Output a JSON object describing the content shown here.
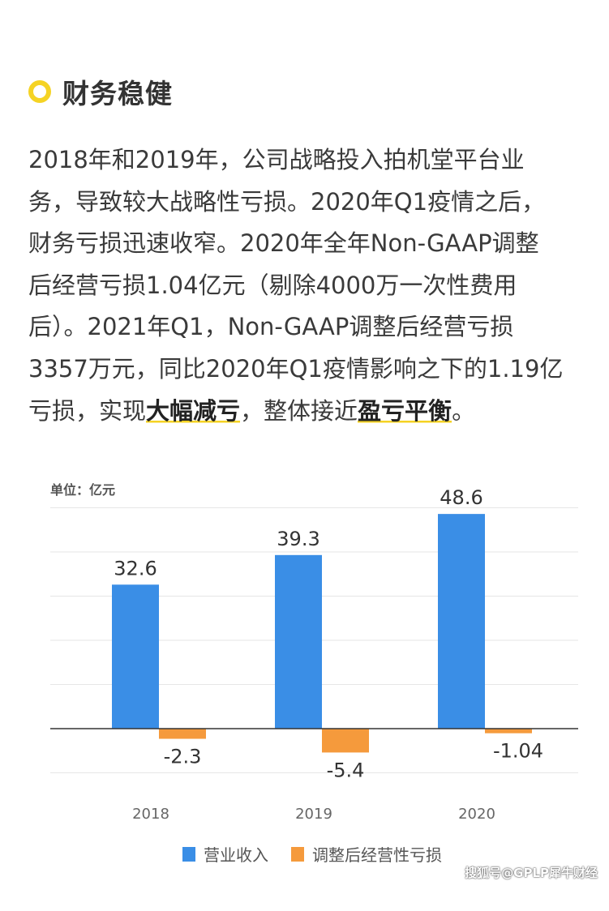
{
  "section": {
    "icon": "yellow-ring-icon",
    "title": "财务稳健"
  },
  "paragraph": {
    "lines": [
      "2018年和2019年，公司战略投入拍机堂平台业",
      "务，导致较大战略性亏损。2020年Q1疫情之后，",
      "财务亏损迅速收窄。2020年全年Non-GAAP调整",
      "后经营亏损1.04亿元（剔除4000万一次性费用",
      "后）。2021年Q1，Non-GAAP调整后经营亏损",
      "3357万元，同比2020年Q1疫情影响之下的1.19亿"
    ],
    "last_line": {
      "part1": "亏损，实现",
      "highlight1": "大幅减亏",
      "part2": "，整体接近",
      "highlight2": "盈亏平衡",
      "part3": "。"
    },
    "highlight_color": "#f5d324"
  },
  "chart_data": {
    "type": "bar",
    "unit_label": "单位：亿元",
    "categories": [
      "2018",
      "2019",
      "2020"
    ],
    "series": [
      {
        "name": "营业收入",
        "values": [
          32.6,
          39.3,
          48.6
        ],
        "labels": [
          "32.6",
          "39.3",
          "48.6"
        ],
        "color": "#3a8ee6"
      },
      {
        "name": "调整后经营性亏损",
        "values": [
          -2.3,
          -5.4,
          -1.04
        ],
        "labels": [
          "-2.3",
          "-5.4",
          "-1.04"
        ],
        "color": "#f59a3c"
      }
    ],
    "ylim": [
      -10,
      50
    ],
    "grid": true,
    "legend": "bottom"
  },
  "watermark": "搜狐号@GPLP犀牛财经"
}
